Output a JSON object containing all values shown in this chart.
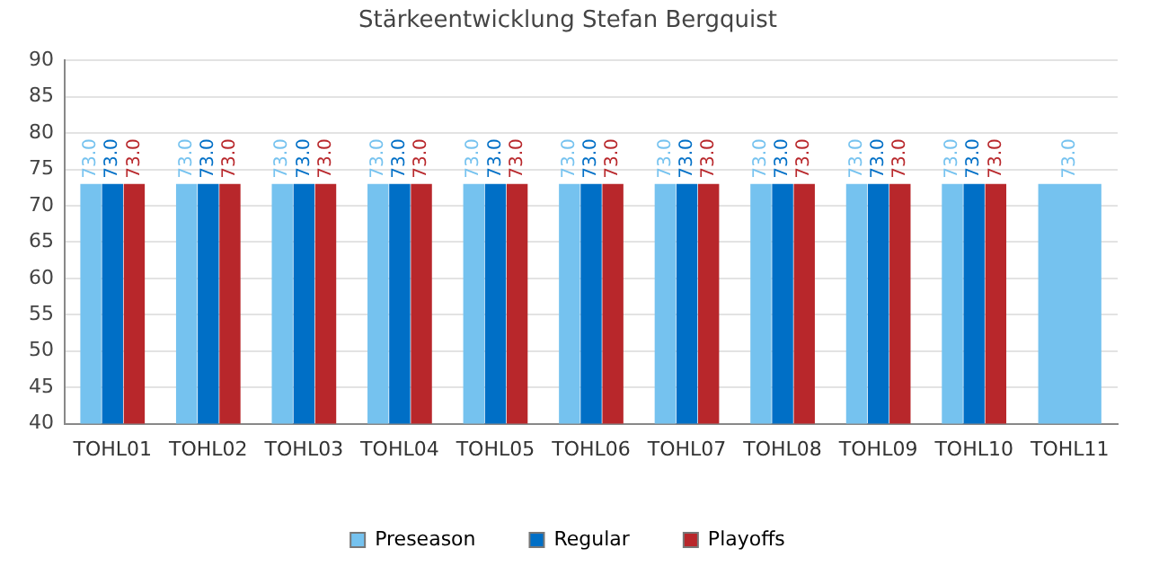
{
  "chart_data": {
    "type": "bar",
    "title": "Stärkeentwicklung Stefan Bergquist",
    "categories": [
      "TOHL01",
      "TOHL02",
      "TOHL03",
      "TOHL04",
      "TOHL05",
      "TOHL06",
      "TOHL07",
      "TOHL08",
      "TOHL09",
      "TOHL10",
      "TOHL11"
    ],
    "series": [
      {
        "name": "Preseason",
        "color": "#75c2ef",
        "values": [
          73,
          73,
          73,
          73,
          73,
          73,
          73,
          73,
          73,
          73,
          73
        ],
        "value_labels": [
          "73.0",
          "73.0",
          "73.0",
          "73.0",
          "73.0",
          "73.0",
          "73.0",
          "73.0",
          "73.0",
          "73.0",
          "73.0"
        ]
      },
      {
        "name": "Regular",
        "color": "#006fc6",
        "values": [
          73,
          73,
          73,
          73,
          73,
          73,
          73,
          73,
          73,
          73,
          null
        ],
        "value_labels": [
          "73.0",
          "73.0",
          "73.0",
          "73.0",
          "73.0",
          "73.0",
          "73.0",
          "73.0",
          "73.0",
          "73.0",
          null
        ]
      },
      {
        "name": "Playoffs",
        "color": "#b8272b",
        "values": [
          73,
          73,
          73,
          73,
          73,
          73,
          73,
          73,
          73,
          73,
          null
        ],
        "value_labels": [
          "73.0",
          "73.0",
          "73.0",
          "73.0",
          "73.0",
          "73.0",
          "73.0",
          "73.0",
          "73.0",
          "73.0",
          null
        ]
      }
    ],
    "ylim": [
      40,
      90
    ],
    "yticks": [
      40,
      45,
      50,
      55,
      60,
      65,
      70,
      75,
      80,
      85,
      90
    ],
    "grid": "y",
    "legend": "bottom"
  }
}
